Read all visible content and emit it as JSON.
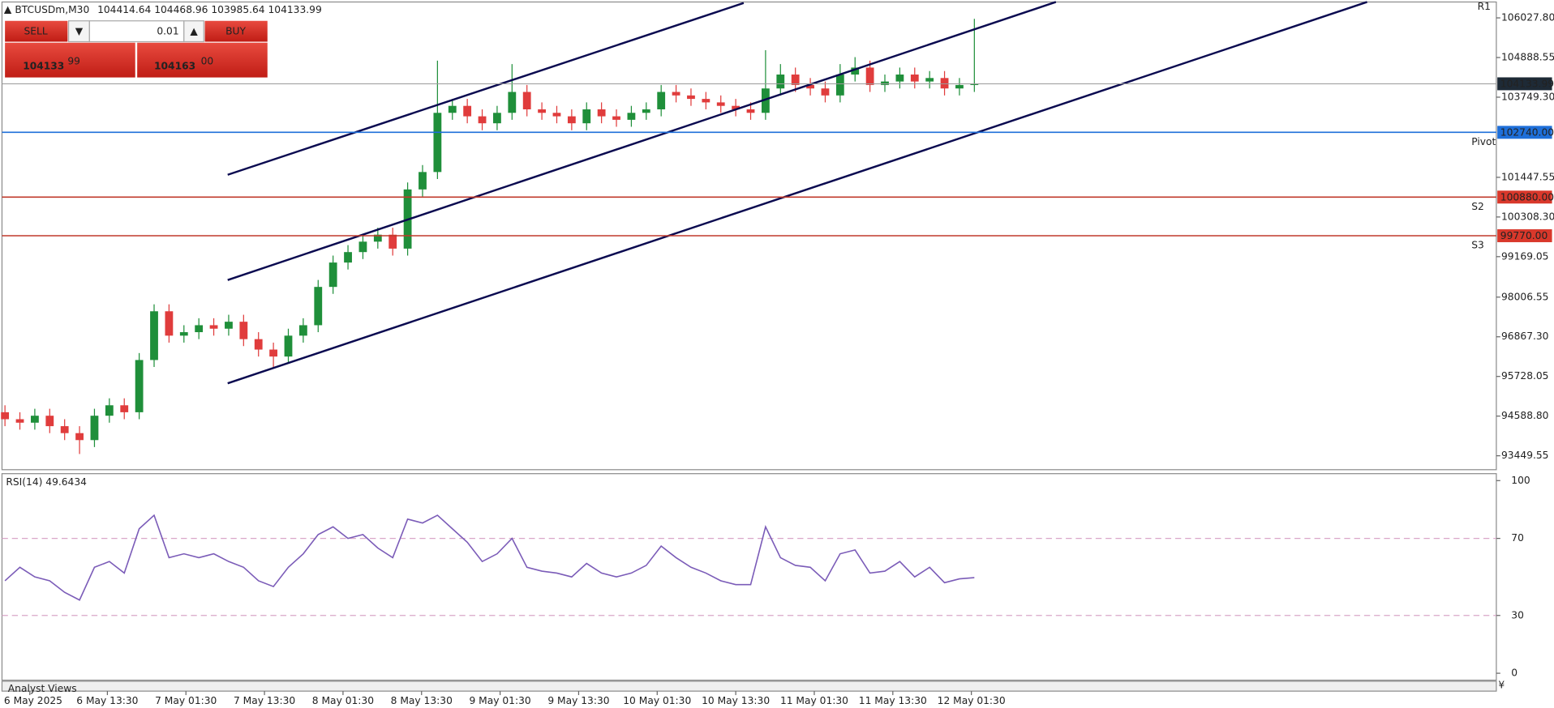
{
  "header": {
    "symbol": "BTCUSDm,M30",
    "ohlc": "104414.64 104468.96 103985.64 104133.99"
  },
  "trade_panel": {
    "sell": "SELL",
    "lot": "0.01",
    "buy": "BUY",
    "bid_main": "104133",
    "bid_pips": "99",
    "ask_main": "104163",
    "ask_pips": "00"
  },
  "chart_data": {
    "type": "candlestick",
    "up_color": "#1f8f3a",
    "down_color": "#e03c3c",
    "open": [
      94700,
      94500,
      94400,
      94600,
      94300,
      94100,
      93900,
      94600,
      94900,
      94700,
      96200,
      97600,
      96900,
      97000,
      97200,
      97100,
      97300,
      96800,
      96500,
      96300,
      96900,
      97200,
      98300,
      99000,
      99300,
      99600,
      99800,
      99400,
      101100,
      101600,
      103300,
      103500,
      103200,
      103000,
      103300,
      103900,
      103400,
      103300,
      103200,
      103000,
      103400,
      103200,
      103100,
      103300,
      103400,
      103900,
      103800,
      103700,
      103600,
      103500,
      103400,
      103300,
      104000,
      104400,
      104100,
      104000,
      103800,
      104400,
      104600,
      104100,
      104200,
      104400,
      104200,
      104300,
      104000,
      104100
    ],
    "high": [
      94900,
      94700,
      94800,
      94800,
      94500,
      94300,
      94800,
      95100,
      95100,
      96400,
      97800,
      97800,
      97200,
      97400,
      97400,
      97500,
      97500,
      97000,
      96700,
      97100,
      97400,
      98500,
      99200,
      99500,
      99800,
      100000,
      100000,
      101300,
      101800,
      104800,
      103700,
      103700,
      103400,
      103500,
      104700,
      104100,
      103600,
      103500,
      103400,
      103600,
      103600,
      103400,
      103500,
      103600,
      104100,
      104100,
      104000,
      103900,
      103800,
      103700,
      103600,
      105100,
      104700,
      104600,
      104300,
      104200,
      104700,
      104900,
      104800,
      104400,
      104600,
      104600,
      104500,
      104500,
      104300,
      106000
    ],
    "low": [
      94300,
      94200,
      94200,
      94100,
      93900,
      93500,
      93700,
      94400,
      94500,
      94500,
      96000,
      96700,
      96700,
      96800,
      96900,
      96900,
      96600,
      96300,
      96000,
      96100,
      96700,
      97000,
      98100,
      98800,
      99100,
      99400,
      99200,
      99200,
      100900,
      101400,
      103100,
      103000,
      102800,
      102800,
      103100,
      103200,
      103100,
      103000,
      102800,
      102800,
      103000,
      102900,
      102900,
      103100,
      103200,
      103600,
      103500,
      103400,
      103300,
      103200,
      103100,
      103100,
      103800,
      103900,
      103800,
      103600,
      103600,
      104200,
      103900,
      103900,
      104000,
      104000,
      104000,
      103800,
      103800,
      103900
    ],
    "close": [
      94500,
      94400,
      94600,
      94300,
      94100,
      93900,
      94600,
      94900,
      94700,
      96200,
      97600,
      96900,
      97000,
      97200,
      97100,
      97300,
      96800,
      96500,
      96300,
      96900,
      97200,
      98300,
      99000,
      99300,
      99600,
      99800,
      99400,
      101100,
      101600,
      103300,
      103500,
      103200,
      103000,
      103300,
      103900,
      103400,
      103300,
      103200,
      103000,
      103400,
      103200,
      103100,
      103300,
      103400,
      103900,
      103800,
      103700,
      103600,
      103500,
      103400,
      103300,
      104000,
      104400,
      104100,
      104000,
      103800,
      104400,
      104600,
      104100,
      104200,
      104400,
      104200,
      104300,
      104000,
      104100,
      104133.99
    ],
    "ylim": [
      93050,
      106484
    ],
    "yticks": [
      {
        "value": 106027.8,
        "label": "106027.80"
      },
      104888.55,
      {
        "value": 103749.3,
        "label": "103749.30"
      },
      101447.55,
      {
        "value": 100308.3,
        "label": "100308.30"
      },
      99169.05,
      98006.55,
      {
        "value": 96867.3,
        "label": "96867.30"
      },
      95728.05,
      {
        "value": 94588.8,
        "label": "94588.80"
      },
      93449.55
    ],
    "time_labels": [
      "6 May 2025",
      "6 May 13:30",
      "7 May 01:30",
      "7 May 13:30",
      "8 May 01:30",
      "8 May 13:30",
      "9 May 01:30",
      "9 May 13:30",
      "10 May 01:30",
      "10 May 13:30",
      "11 May 01:30",
      "11 May 13:30",
      "12 May 01:30"
    ],
    "levels": [
      {
        "value": 104133.99,
        "label": "104133.99",
        "color": "#9a9a9a",
        "box": "#1e2a36"
      },
      {
        "value": 102740,
        "label": "102740.00",
        "tag": "Pivot",
        "color": "#1e6fd9",
        "box": "#1e6fd9"
      },
      {
        "value": 100880,
        "label": "100880.00",
        "tag": "S2",
        "color": "#c0392b",
        "box": "#d9382b"
      },
      {
        "value": 99770,
        "label": "99770.00",
        "tag": "S3",
        "color": "#c0392b",
        "box": "#d9382b"
      }
    ],
    "r1_tag": "R1",
    "rsi": {
      "label": "RSI(14) 49.6434",
      "color": "#7b5cb8",
      "values": [
        48,
        55,
        50,
        48,
        42,
        38,
        55,
        58,
        52,
        75,
        82,
        60,
        62,
        60,
        62,
        58,
        55,
        48,
        45,
        55,
        62,
        72,
        76,
        70,
        72,
        65,
        60,
        80,
        78,
        82,
        75,
        68,
        58,
        62,
        70,
        55,
        53,
        52,
        50,
        57,
        52,
        50,
        52,
        56,
        66,
        60,
        55,
        52,
        48,
        46,
        46,
        76,
        60,
        56,
        55,
        48,
        62,
        64,
        52,
        53,
        58,
        50,
        55,
        47,
        49,
        49.6434
      ],
      "ylim": [
        0,
        100
      ],
      "yticks": [
        100,
        70,
        30,
        0
      ],
      "levels": [
        70,
        30
      ]
    }
  },
  "footer": {
    "tab": "Analyst Views"
  }
}
